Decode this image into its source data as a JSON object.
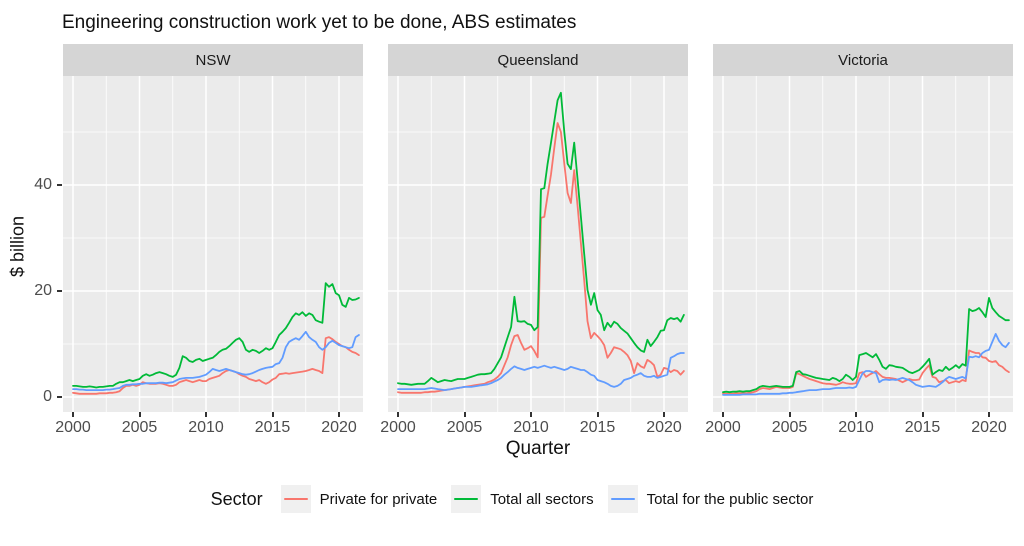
{
  "title": "Engineering construction work yet to be done, ABS estimates",
  "axes": {
    "x": {
      "label": "Quarter",
      "ticks": [
        2000,
        2005,
        2010,
        2015,
        2020
      ],
      "minor_ticks": [
        2002.5,
        2007.5,
        2012.5,
        2017.5
      ]
    },
    "y": {
      "label": "$ billion",
      "ticks": [
        0,
        20,
        40
      ],
      "minor_ticks": [
        10,
        30,
        50
      ],
      "range": [
        -2.8,
        60.5
      ]
    }
  },
  "legend": {
    "title": "Sector",
    "position": "bottom"
  },
  "colors": {
    "private_for_private": "#F8766D",
    "total_all_sectors": "#00BA38",
    "total_public_sector": "#619CFF",
    "panel_background": "#EBEBEB",
    "strip_background": "#D5D5D5",
    "gridline": "#FFFFFF"
  },
  "chart_data": {
    "type": "line",
    "title": "Engineering construction work yet to be done, ABS estimates",
    "xlabel": "Quarter",
    "ylabel": "$ billion",
    "x_unit": "decimal years, quarterly",
    "x_start": 2000.0,
    "x_step": 0.25,
    "n_points": 87,
    "grid": true,
    "legend_position": "bottom",
    "facets": [
      {
        "label": "NSW",
        "series": [
          {
            "name": "Private for private",
            "color": "#F8766D",
            "values": [
              0.8,
              0.7,
              0.6,
              0.6,
              0.6,
              0.6,
              0.6,
              0.6,
              0.7,
              0.7,
              0.7,
              0.8,
              0.8,
              0.9,
              1.1,
              1.7,
              2.1,
              2.1,
              2.3,
              2.1,
              2.3,
              2.8,
              2.6,
              2.5,
              2.5,
              2.5,
              2.6,
              2.5,
              2.3,
              2.1,
              2.1,
              2.3,
              2.8,
              3.0,
              3.2,
              3.0,
              2.8,
              3.0,
              3.2,
              3.0,
              3.0,
              3.4,
              3.6,
              3.8,
              4.0,
              4.5,
              4.9,
              5.1,
              4.9,
              4.7,
              4.3,
              4.0,
              3.8,
              3.4,
              3.2,
              3.0,
              3.2,
              2.8,
              2.5,
              2.8,
              3.3,
              3.6,
              4.3,
              4.4,
              4.5,
              4.4,
              4.5,
              4.6,
              4.7,
              4.8,
              4.9,
              5.1,
              5.3,
              5.1,
              4.9,
              4.5,
              11.1,
              11.3,
              10.9,
              10.4,
              10.0,
              9.6,
              9.4,
              8.9,
              8.5,
              8.3,
              7.9
            ]
          },
          {
            "name": "Total all sectors",
            "color": "#00BA38",
            "values": [
              2.1,
              2.1,
              2.0,
              1.9,
              1.9,
              2.0,
              1.9,
              1.8,
              1.9,
              1.9,
              2.0,
              2.1,
              2.1,
              2.5,
              2.8,
              2.8,
              3.0,
              3.2,
              3.0,
              3.2,
              3.4,
              4.0,
              4.3,
              4.0,
              4.2,
              4.5,
              4.7,
              4.5,
              4.3,
              4.0,
              3.8,
              4.2,
              5.5,
              7.7,
              7.4,
              6.8,
              6.6,
              7.0,
              7.2,
              6.8,
              7.0,
              7.2,
              7.4,
              7.9,
              8.5,
              8.9,
              9.1,
              9.6,
              10.2,
              10.8,
              11.1,
              10.4,
              8.9,
              8.5,
              8.9,
              8.7,
              8.3,
              8.7,
              9.2,
              8.9,
              9.2,
              10.4,
              11.7,
              12.3,
              13.0,
              14.0,
              15.1,
              15.8,
              15.5,
              16.0,
              15.3,
              15.8,
              15.5,
              14.5,
              14.2,
              14.0,
              21.5,
              20.8,
              21.3,
              19.6,
              19.2,
              17.4,
              17.0,
              18.7,
              18.3,
              18.4,
              18.7
            ]
          },
          {
            "name": "Total for the public sector",
            "color": "#619CFF",
            "values": [
              1.5,
              1.5,
              1.4,
              1.4,
              1.3,
              1.3,
              1.3,
              1.3,
              1.3,
              1.3,
              1.4,
              1.4,
              1.5,
              1.6,
              1.7,
              2.1,
              2.3,
              2.3,
              2.4,
              2.4,
              2.5,
              2.5,
              2.6,
              2.6,
              2.6,
              2.6,
              2.7,
              2.7,
              2.6,
              2.7,
              2.8,
              3.1,
              3.4,
              3.5,
              3.6,
              3.6,
              3.6,
              3.7,
              3.8,
              4.0,
              4.2,
              4.7,
              5.3,
              5.1,
              4.9,
              5.1,
              5.3,
              5.1,
              4.9,
              4.7,
              4.5,
              4.3,
              4.2,
              4.3,
              4.5,
              4.8,
              5.1,
              5.3,
              5.5,
              5.6,
              5.7,
              6.2,
              6.4,
              7.4,
              9.4,
              10.4,
              10.8,
              11.1,
              10.8,
              11.5,
              12.3,
              11.3,
              10.8,
              10.4,
              9.4,
              8.9,
              9.4,
              10.2,
              10.6,
              10.2,
              9.8,
              9.6,
              9.4,
              9.2,
              9.4,
              11.3,
              11.7
            ]
          }
        ]
      },
      {
        "label": "Queensland",
        "series": [
          {
            "name": "Private for private",
            "color": "#F8766D",
            "values": [
              0.9,
              0.8,
              0.8,
              0.8,
              0.8,
              0.8,
              0.8,
              0.8,
              0.9,
              0.9,
              1.0,
              1.0,
              1.1,
              1.2,
              1.3,
              1.4,
              1.5,
              1.6,
              1.7,
              1.8,
              1.9,
              2.0,
              2.1,
              2.2,
              2.3,
              2.4,
              2.5,
              2.8,
              3.0,
              3.3,
              3.8,
              4.5,
              6.0,
              7.5,
              9.8,
              11.5,
              11.7,
              10.2,
              8.9,
              9.2,
              9.6,
              8.7,
              7.5,
              33.8,
              34.0,
              38.0,
              42.0,
              47.0,
              51.7,
              50.0,
              44.0,
              38.5,
              36.6,
              42.8,
              36.0,
              29.0,
              22.0,
              14.3,
              11.1,
              12.1,
              11.5,
              10.8,
              9.8,
              7.4,
              8.3,
              9.4,
              9.2,
              9.0,
              8.5,
              7.9,
              6.8,
              4.5,
              6.4,
              5.8,
              5.5,
              7.0,
              6.6,
              6.0,
              3.8,
              4.2,
              5.5,
              5.3,
              4.7,
              5.1,
              4.9,
              4.2,
              4.9
            ]
          },
          {
            "name": "Total all sectors",
            "color": "#00BA38",
            "values": [
              2.6,
              2.5,
              2.5,
              2.4,
              2.3,
              2.4,
              2.5,
              2.5,
              2.5,
              3.0,
              3.6,
              3.2,
              2.8,
              3.0,
              3.2,
              3.1,
              3.0,
              3.2,
              3.4,
              3.4,
              3.4,
              3.6,
              3.8,
              4.0,
              4.2,
              4.3,
              4.3,
              4.4,
              4.5,
              5.3,
              6.4,
              7.5,
              9.4,
              11.3,
              13.2,
              18.9,
              14.3,
              14.2,
              14.3,
              13.8,
              13.6,
              12.6,
              13.2,
              39.2,
              39.4,
              44.0,
              48.0,
              52.0,
              56.0,
              57.4,
              50.0,
              44.0,
              43.0,
              48.0,
              41.0,
              34.0,
              27.0,
              20.2,
              17.4,
              19.6,
              16.4,
              15.5,
              12.6,
              14.0,
              13.2,
              14.2,
              13.8,
              13.0,
              12.5,
              12.0,
              11.1,
              10.2,
              9.4,
              8.8,
              8.5,
              10.8,
              9.6,
              10.4,
              11.3,
              12.5,
              12.6,
              14.5,
              14.9,
              14.7,
              14.9,
              14.2,
              15.5
            ]
          },
          {
            "name": "Total for the public sector",
            "color": "#619CFF",
            "values": [
              1.5,
              1.5,
              1.5,
              1.5,
              1.5,
              1.5,
              1.5,
              1.5,
              1.5,
              1.6,
              1.7,
              1.6,
              1.5,
              1.4,
              1.3,
              1.4,
              1.5,
              1.6,
              1.7,
              1.8,
              1.9,
              1.9,
              1.9,
              2.0,
              2.1,
              2.2,
              2.3,
              2.4,
              2.6,
              2.9,
              3.2,
              3.6,
              4.2,
              4.7,
              5.3,
              5.8,
              5.5,
              5.3,
              5.1,
              5.3,
              5.5,
              5.7,
              5.5,
              5.7,
              5.9,
              5.7,
              5.5,
              5.7,
              5.5,
              5.3,
              5.1,
              5.3,
              5.7,
              5.5,
              5.3,
              5.1,
              5.1,
              4.7,
              4.2,
              4.0,
              3.2,
              3.0,
              2.8,
              2.5,
              2.1,
              1.9,
              2.1,
              2.5,
              3.2,
              3.4,
              3.6,
              4.0,
              4.2,
              4.5,
              4.0,
              3.8,
              3.8,
              4.0,
              3.6,
              3.8,
              4.0,
              4.2,
              7.4,
              7.7,
              8.1,
              8.3,
              8.3
            ]
          }
        ]
      },
      {
        "label": "Victoria",
        "series": [
          {
            "name": "Private for private",
            "color": "#F8766D",
            "values": [
              0.6,
              0.6,
              0.6,
              0.6,
              0.7,
              0.7,
              0.7,
              0.7,
              0.8,
              0.9,
              1.1,
              1.5,
              1.7,
              1.6,
              1.5,
              1.7,
              1.9,
              1.8,
              1.7,
              1.7,
              1.7,
              1.9,
              4.5,
              4.3,
              4.0,
              3.7,
              3.4,
              3.2,
              3.0,
              2.8,
              2.6,
              2.5,
              2.5,
              2.4,
              2.3,
              2.5,
              2.8,
              2.6,
              2.5,
              2.5,
              2.6,
              4.5,
              4.7,
              3.8,
              4.2,
              4.5,
              4.9,
              4.3,
              3.8,
              3.6,
              3.6,
              3.5,
              3.4,
              3.1,
              2.8,
              3.1,
              3.4,
              3.2,
              3.2,
              3.3,
              4.5,
              5.3,
              6.0,
              3.8,
              3.6,
              2.8,
              3.0,
              3.2,
              2.6,
              2.8,
              3.0,
              2.8,
              3.2,
              3.0,
              8.8,
              8.5,
              8.3,
              8.3,
              7.5,
              7.4,
              6.8,
              6.6,
              6.8,
              6.0,
              5.7,
              5.1,
              4.7
            ]
          },
          {
            "name": "Total all sectors",
            "color": "#00BA38",
            "values": [
              0.9,
              1.0,
              0.9,
              1.0,
              1.0,
              1.1,
              1.0,
              1.1,
              1.1,
              1.3,
              1.5,
              1.9,
              2.1,
              2.0,
              1.9,
              2.0,
              2.1,
              2.0,
              1.9,
              1.9,
              1.9,
              2.1,
              4.7,
              4.9,
              4.3,
              4.2,
              4.0,
              3.8,
              3.6,
              3.5,
              3.4,
              3.3,
              3.2,
              3.6,
              3.4,
              3.0,
              3.4,
              4.2,
              3.8,
              3.2,
              3.8,
              7.9,
              8.1,
              8.3,
              7.9,
              7.5,
              8.1,
              7.0,
              5.7,
              5.3,
              6.0,
              5.9,
              5.7,
              5.6,
              5.5,
              5.1,
              4.7,
              4.5,
              4.8,
              5.1,
              5.7,
              6.4,
              7.2,
              4.2,
              4.7,
              5.1,
              4.9,
              5.7,
              5.1,
              5.5,
              6.0,
              5.5,
              6.2,
              5.9,
              16.6,
              16.2,
              16.4,
              16.8,
              16.0,
              15.1,
              18.7,
              16.8,
              16.0,
              15.3,
              14.9,
              14.5,
              14.5
            ]
          },
          {
            "name": "Total for the public sector",
            "color": "#619CFF",
            "values": [
              0.4,
              0.4,
              0.4,
              0.4,
              0.4,
              0.4,
              0.5,
              0.5,
              0.5,
              0.5,
              0.5,
              0.6,
              0.6,
              0.6,
              0.6,
              0.6,
              0.6,
              0.6,
              0.7,
              0.7,
              0.8,
              0.8,
              0.9,
              1.0,
              1.1,
              1.2,
              1.3,
              1.3,
              1.3,
              1.4,
              1.5,
              1.5,
              1.5,
              1.6,
              1.7,
              1.7,
              1.7,
              1.7,
              1.8,
              1.7,
              1.9,
              3.2,
              4.5,
              4.9,
              4.9,
              4.7,
              4.5,
              2.8,
              3.2,
              3.3,
              3.2,
              3.3,
              3.2,
              3.4,
              3.6,
              3.4,
              3.2,
              2.8,
              2.3,
              2.1,
              1.9,
              2.0,
              2.1,
              2.0,
              1.9,
              2.3,
              2.8,
              3.4,
              3.8,
              3.6,
              3.4,
              3.6,
              3.8,
              3.5,
              7.6,
              7.5,
              7.7,
              7.5,
              8.3,
              8.7,
              8.9,
              10.4,
              11.9,
              10.6,
              9.8,
              9.4,
              10.2
            ]
          }
        ]
      }
    ]
  }
}
